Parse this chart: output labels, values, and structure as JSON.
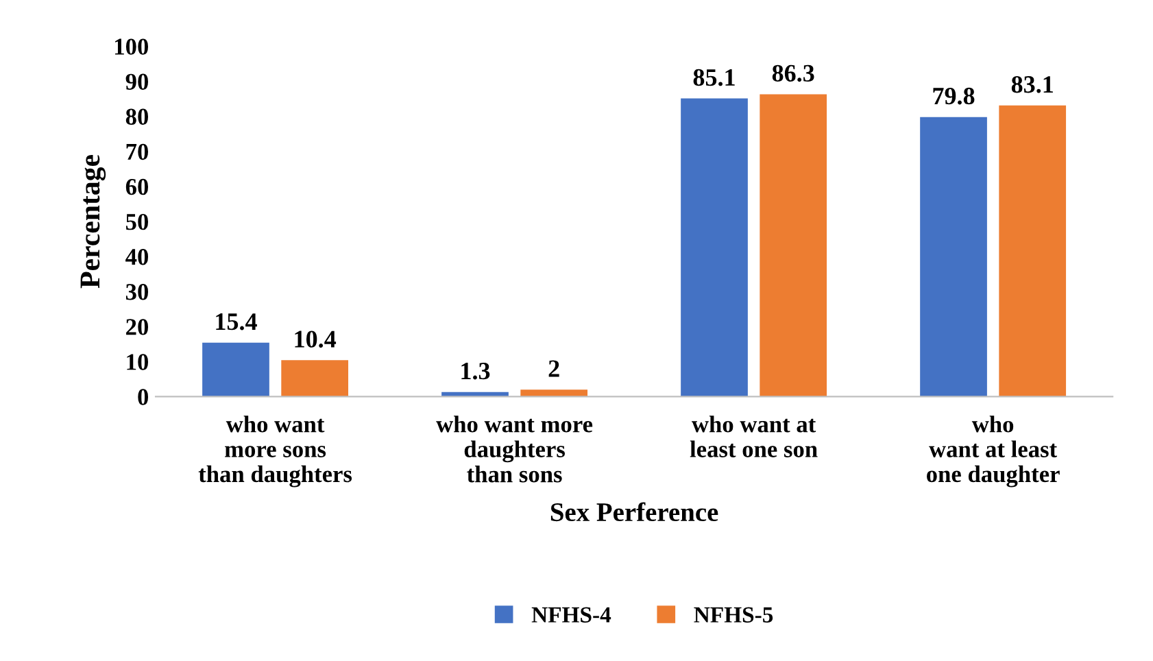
{
  "chart_data": {
    "type": "bar",
    "xlabel": "Sex Perference",
    "ylabel": "Percentage",
    "categories": [
      "who want\nmore sons\nthan daughters",
      "who want more\ndaughters\nthan sons",
      "who want at\nleast one son",
      "who\nwant at least\none daughter"
    ],
    "series": [
      {
        "name": "NFHS-4",
        "color": "#4472c4",
        "values": [
          15.4,
          1.3,
          85.1,
          79.8
        ]
      },
      {
        "name": "NFHS-5",
        "color": "#ed7d31",
        "values": [
          10.4,
          2,
          86.3,
          83.1
        ]
      }
    ],
    "ylim": [
      0,
      100
    ],
    "yticks": [
      0,
      10,
      20,
      30,
      40,
      50,
      60,
      70,
      80,
      90,
      100
    ],
    "data_labels": true,
    "grid": false,
    "legend": "bottom"
  }
}
